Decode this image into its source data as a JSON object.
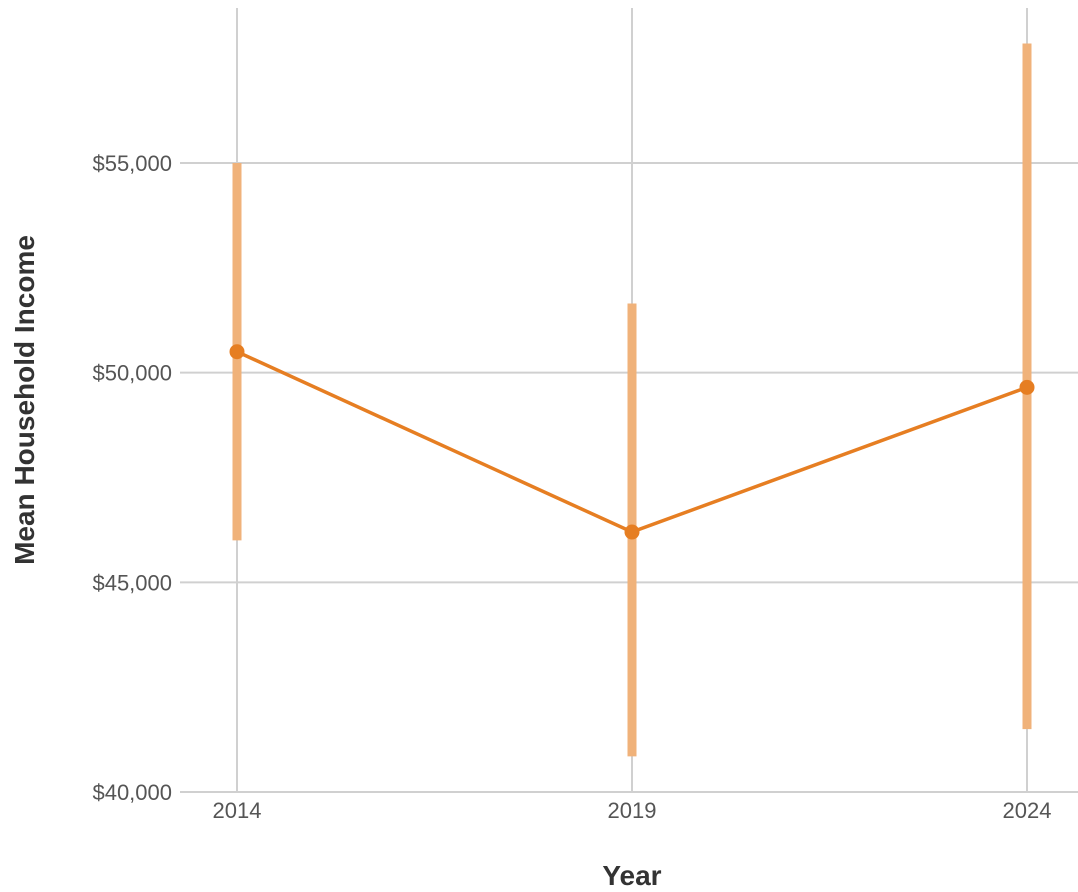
{
  "chart_data": {
    "type": "line",
    "xlabel": "Year",
    "ylabel": "Mean Household Income",
    "categories": [
      "2014",
      "2019",
      "2024"
    ],
    "series": [
      {
        "values": [
          50500,
          46200,
          49650
        ],
        "error_low": [
          46000,
          40850,
          41500
        ],
        "error_high": [
          55000,
          51650,
          57850
        ]
      }
    ],
    "ylim": [
      40000,
      58500
    ],
    "yticks": [
      40000,
      45000,
      50000,
      55000
    ],
    "ytick_labels": [
      "$40,000",
      "$45,000",
      "$50,000",
      "$55,000"
    ],
    "grid": true,
    "colors": {
      "line": "#e67e22",
      "errorbar": "#f0b27a",
      "grid": "#d0d0d0"
    }
  }
}
